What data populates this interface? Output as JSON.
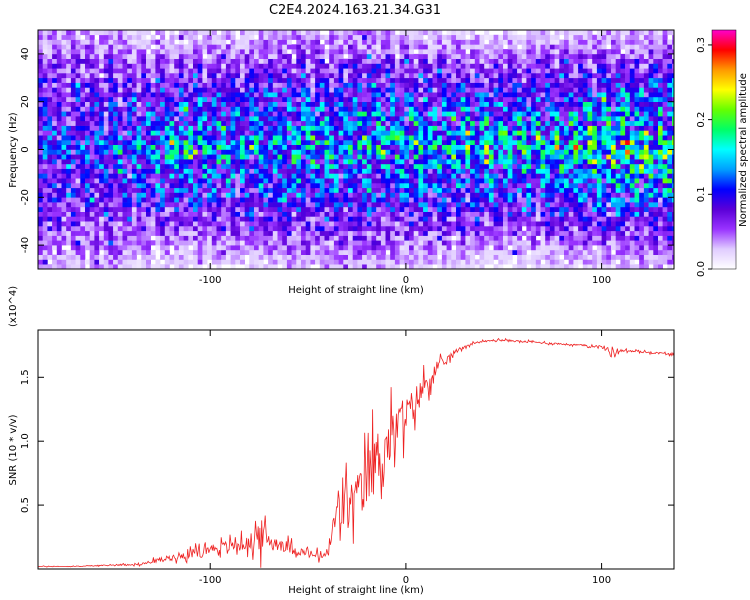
{
  "figure_title": "C2E4.2024.163.21.34.G31",
  "colors": {
    "snr_line": "#ee2222",
    "colormap": [
      "#ffffff",
      "#e0ccff",
      "#9933ff",
      "#5a00d8",
      "#0000ff",
      "#00a0ff",
      "#00ffff",
      "#00ff66",
      "#66ff00",
      "#ffff00",
      "#ff9900",
      "#ff0000",
      "#ff00cc"
    ]
  },
  "chart_data": [
    {
      "type": "heatmap",
      "title": "",
      "xlabel": "Height of straight line (km)",
      "ylabel": "Frequency (Hz)",
      "xlim": [
        -188,
        137
      ],
      "ylim": [
        -50,
        50
      ],
      "x_ticks": [
        -100,
        0,
        100
      ],
      "x_tick_labels": [
        "-100",
        "0",
        "100"
      ],
      "y_ticks": [
        -40,
        -20,
        0,
        20,
        40
      ],
      "y_tick_labels": [
        "-40",
        "-20",
        "0",
        "20",
        "40"
      ],
      "colorbar": {
        "label": "Normalized spectral amplitude",
        "range": [
          0.0,
          0.32
        ],
        "ticks": [
          0.0,
          0.1,
          0.2,
          0.3
        ],
        "tick_labels": [
          "0.0",
          "0.1",
          "0.2",
          "0.3"
        ]
      },
      "envelope": {
        "x": [
          -188,
          -150,
          -140,
          -120,
          -100,
          -80,
          -60,
          -40,
          -20,
          0,
          20,
          40,
          60,
          80,
          100,
          120,
          137
        ],
        "freq_halfwidth": [
          50,
          50,
          42,
          40,
          40,
          42,
          44,
          44,
          44,
          42,
          40,
          38,
          38,
          40,
          40,
          40,
          40
        ],
        "peak_amplitude": [
          0.12,
          0.12,
          0.14,
          0.16,
          0.16,
          0.15,
          0.16,
          0.16,
          0.17,
          0.16,
          0.17,
          0.18,
          0.17,
          0.18,
          0.19,
          0.2,
          0.2
        ]
      }
    },
    {
      "type": "line",
      "title": "",
      "xlabel": "Height of straight line (km)",
      "ylabel": "SNR (10 * v/v)",
      "y_scale_label": "(x10^4)",
      "xlim": [
        -188,
        137
      ],
      "ylim": [
        0,
        1.87
      ],
      "x_ticks": [
        -100,
        0,
        100
      ],
      "x_tick_labels": [
        "-100",
        "0",
        "100"
      ],
      "y_ticks": [
        0.5,
        1.0,
        1.5
      ],
      "y_tick_labels": [
        "0.5",
        "1.0",
        "1.5"
      ],
      "series": [
        {
          "x": [
            -188,
            -170,
            -150,
            -135,
            -120,
            -110,
            -100,
            -90,
            -80,
            -75,
            -70,
            -65,
            -60,
            -55,
            -50,
            -45,
            -40,
            -35,
            -30,
            -25,
            -20,
            -15,
            -10,
            -5,
            0,
            5,
            10,
            15,
            20,
            25,
            30,
            35,
            40,
            45,
            50,
            60,
            70,
            80,
            90,
            100,
            105,
            110,
            120,
            137
          ],
          "values": [
            0.02,
            0.02,
            0.03,
            0.04,
            0.09,
            0.12,
            0.16,
            0.18,
            0.2,
            0.28,
            0.22,
            0.2,
            0.17,
            0.14,
            0.12,
            0.1,
            0.12,
            0.45,
            0.5,
            0.55,
            0.7,
            0.85,
            0.95,
            1.1,
            1.2,
            1.32,
            1.45,
            1.55,
            1.62,
            1.7,
            1.74,
            1.77,
            1.78,
            1.79,
            1.79,
            1.78,
            1.77,
            1.76,
            1.75,
            1.74,
            1.7,
            1.71,
            1.7,
            1.68
          ],
          "noise_amplitude": [
            0.005,
            0.005,
            0.01,
            0.02,
            0.05,
            0.07,
            0.08,
            0.1,
            0.12,
            0.3,
            0.15,
            0.12,
            0.1,
            0.08,
            0.07,
            0.07,
            0.1,
            0.45,
            0.4,
            0.4,
            0.45,
            0.55,
            0.45,
            0.4,
            0.3,
            0.25,
            0.2,
            0.12,
            0.08,
            0.04,
            0.02,
            0.015,
            0.015,
            0.015,
            0.015,
            0.015,
            0.015,
            0.015,
            0.015,
            0.02,
            0.1,
            0.02,
            0.015,
            0.015
          ]
        }
      ]
    }
  ]
}
